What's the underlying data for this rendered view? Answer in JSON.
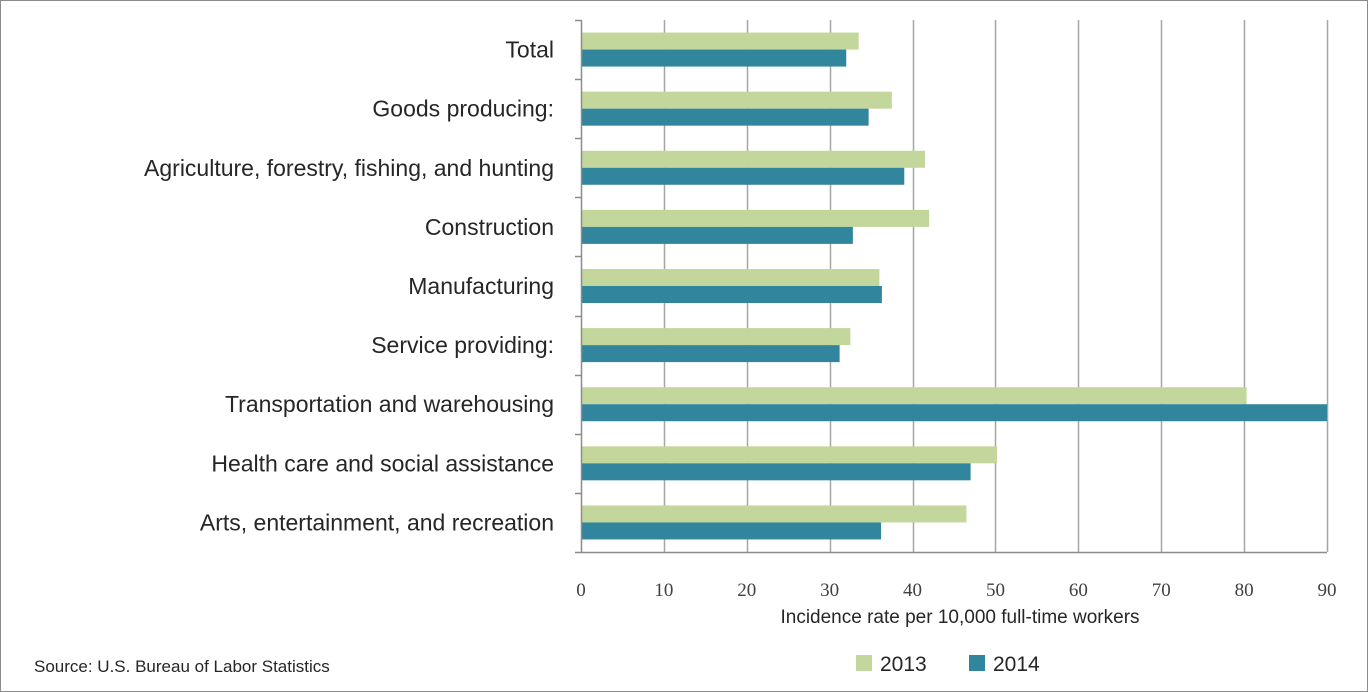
{
  "chart_data": {
    "type": "bar",
    "orientation": "horizontal",
    "categories": [
      "Total",
      "Goods producing:",
      "Agriculture, forestry, fishing, and hunting",
      "Construction",
      "Manufacturing",
      "Service providing:",
      "Transportation and warehousing",
      "Health care and social assistance",
      "Arts, entertainment, and recreation"
    ],
    "series": [
      {
        "name": "2013",
        "color": "#c3d69b",
        "values": [
          33.5,
          37.5,
          41.5,
          42,
          36,
          32.5,
          80.3,
          50.2,
          46.5
        ]
      },
      {
        "name": "2014",
        "color": "#31859c",
        "values": [
          32,
          34.7,
          39,
          32.8,
          36.3,
          31.2,
          90,
          47,
          36.2
        ]
      }
    ],
    "xlabel": "Incidence rate per 10,000 full-time workers",
    "xlim": [
      0,
      90
    ],
    "xticks": [
      "0",
      "10",
      "20",
      "30",
      "40",
      "50",
      "60",
      "70",
      "80",
      "90"
    ],
    "grid": "vertical",
    "legend_position": "bottom"
  },
  "source": "Source: U.S. Bureau of Labor Statistics"
}
